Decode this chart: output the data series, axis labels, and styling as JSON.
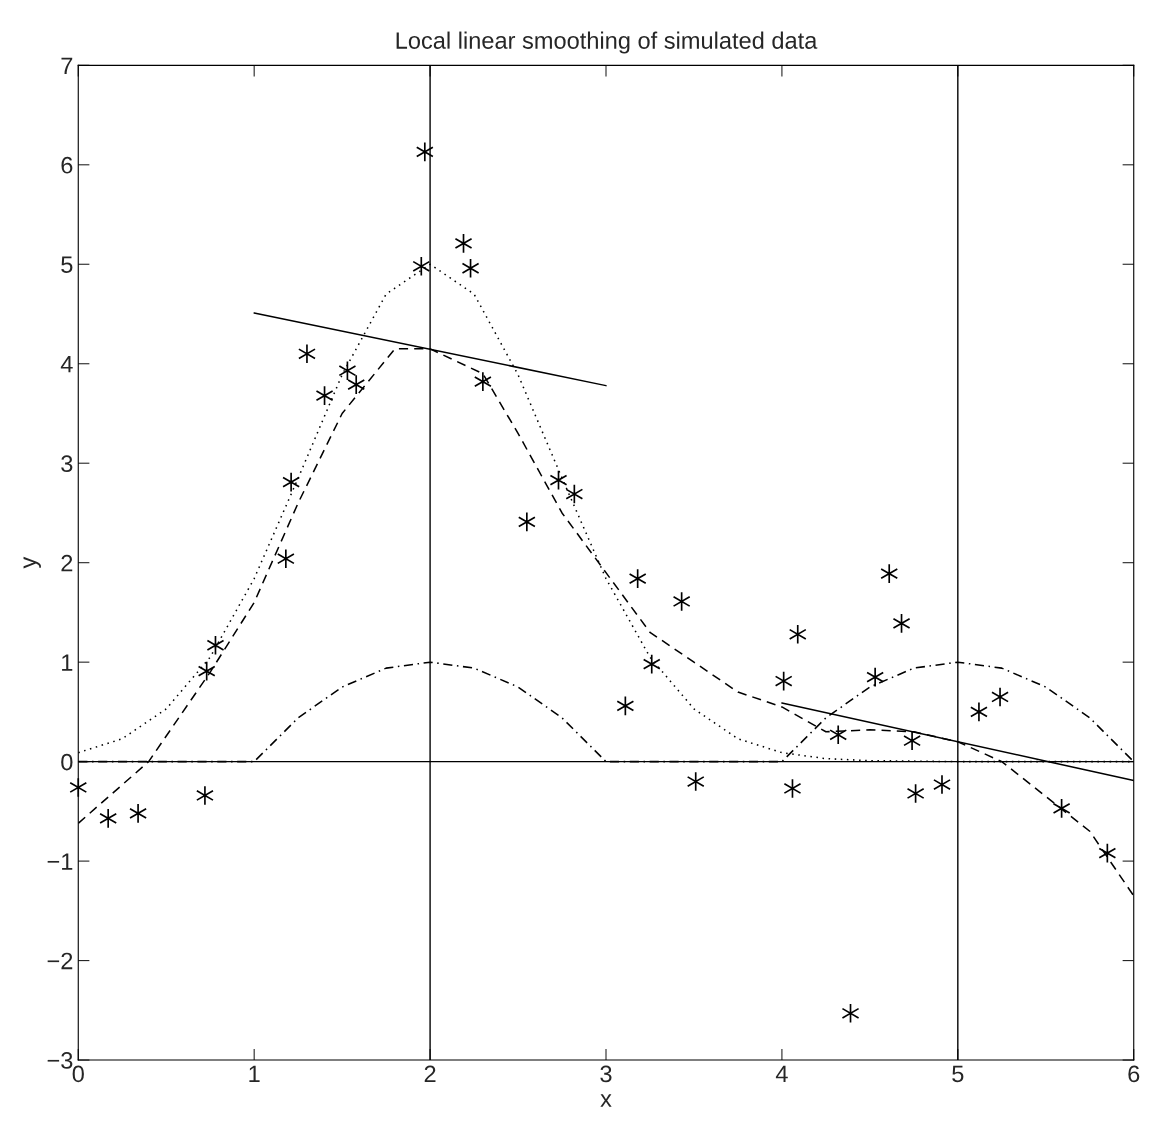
{
  "chart_data": {
    "type": "scatter",
    "title": "Local linear smoothing of simulated data",
    "xlabel": "x",
    "ylabel": "y",
    "xlim": [
      0,
      6
    ],
    "ylim": [
      -3,
      7
    ],
    "xticks": [
      0,
      1,
      2,
      3,
      4,
      5,
      6
    ],
    "yticks": [
      {
        "value": -3,
        "label": "−3"
      },
      {
        "value": -2,
        "label": "−2"
      },
      {
        "value": -1,
        "label": "−1"
      },
      0,
      1,
      2,
      3,
      4,
      5,
      6,
      7
    ],
    "grid": false,
    "legend": false,
    "series": [
      {
        "color": "#000000",
        "marker": "cross",
        "x": [
          0.0,
          0.17,
          0.34,
          0.72,
          0.73,
          0.78,
          1.18,
          1.21,
          1.3,
          1.4,
          1.53,
          1.58,
          1.97,
          1.95,
          2.19,
          2.23,
          2.3,
          2.55,
          2.73,
          2.82,
          3.11,
          3.18,
          3.26,
          3.43,
          3.51,
          4.01,
          4.06,
          4.09,
          4.32,
          4.39,
          4.53,
          4.61,
          4.68,
          4.74,
          4.76,
          4.91,
          5.12,
          5.24,
          5.59,
          5.85
        ],
        "values": [
          -0.26,
          -0.57,
          -0.52,
          -0.34,
          0.91,
          1.17,
          2.04,
          2.81,
          4.1,
          3.68,
          3.93,
          3.79,
          6.13,
          4.98,
          5.21,
          4.96,
          3.82,
          2.41,
          2.83,
          2.69,
          0.56,
          1.84,
          0.98,
          1.61,
          -0.2,
          0.81,
          -0.27,
          1.28,
          0.27,
          -2.53,
          0.85,
          1.89,
          1.39,
          0.21,
          -0.32,
          -0.23,
          0.5,
          0.65,
          -0.47,
          -0.92
        ]
      },
      {
        "type": "line",
        "color": "#000000",
        "line_style": "dotted",
        "x": [
          0,
          0.25,
          0.5,
          0.75,
          1,
          1.25,
          1.5,
          1.75,
          2,
          2.25,
          2.5,
          2.75,
          3,
          3.25,
          3.5,
          3.75,
          4,
          4.25,
          4.5,
          5,
          6
        ],
        "values": [
          0.09,
          0.23,
          0.53,
          1.05,
          1.84,
          2.85,
          3.89,
          4.7,
          5.0,
          4.7,
          3.89,
          2.85,
          1.84,
          1.05,
          0.53,
          0.23,
          0.09,
          0.03,
          0.01,
          0.0,
          0.0
        ]
      },
      {
        "type": "line",
        "color": "#000000",
        "line_style": "dashed",
        "x": [
          0,
          0.4,
          0.75,
          1,
          1.25,
          1.5,
          1.8,
          2,
          2.3,
          2.5,
          2.75,
          3,
          3.25,
          3.5,
          3.75,
          4,
          4.25,
          4.5,
          4.75,
          5,
          5.25,
          5.5,
          5.75,
          6
        ],
        "values": [
          -0.62,
          0.0,
          0.9,
          1.6,
          2.6,
          3.5,
          4.15,
          4.15,
          3.9,
          3.3,
          2.5,
          1.9,
          1.3,
          1.0,
          0.7,
          0.55,
          0.3,
          0.32,
          0.3,
          0.2,
          0.0,
          -0.35,
          -0.7,
          -1.35
        ]
      },
      {
        "type": "line",
        "color": "#000000",
        "line_style": "dashdot",
        "x": [
          0,
          1,
          1.25,
          1.5,
          1.75,
          2,
          2.25,
          2.5,
          2.75,
          3,
          4,
          4.25,
          4.5,
          4.75,
          5,
          5.25,
          5.5,
          5.75,
          6
        ],
        "values": [
          0,
          0,
          0.44,
          0.75,
          0.94,
          1,
          0.94,
          0.75,
          0.44,
          0,
          0,
          0.44,
          0.75,
          0.94,
          1,
          0.94,
          0.75,
          0.44,
          0
        ]
      },
      {
        "type": "line",
        "color": "#000000",
        "line_style": "solid",
        "x": [
          1,
          3
        ],
        "values": [
          4.51,
          3.78
        ]
      },
      {
        "type": "line",
        "color": "#000000",
        "line_style": "solid",
        "x": [
          4,
          6
        ],
        "values": [
          0.59,
          -0.19
        ]
      }
    ],
    "ref_lines": [
      {
        "axis": "x",
        "value": 2,
        "color": "#000000",
        "line_style": "solid"
      },
      {
        "axis": "x",
        "value": 5,
        "color": "#000000",
        "line_style": "solid"
      },
      {
        "axis": "y",
        "value": 0,
        "color": "#000000",
        "line_style": "solid"
      }
    ]
  }
}
